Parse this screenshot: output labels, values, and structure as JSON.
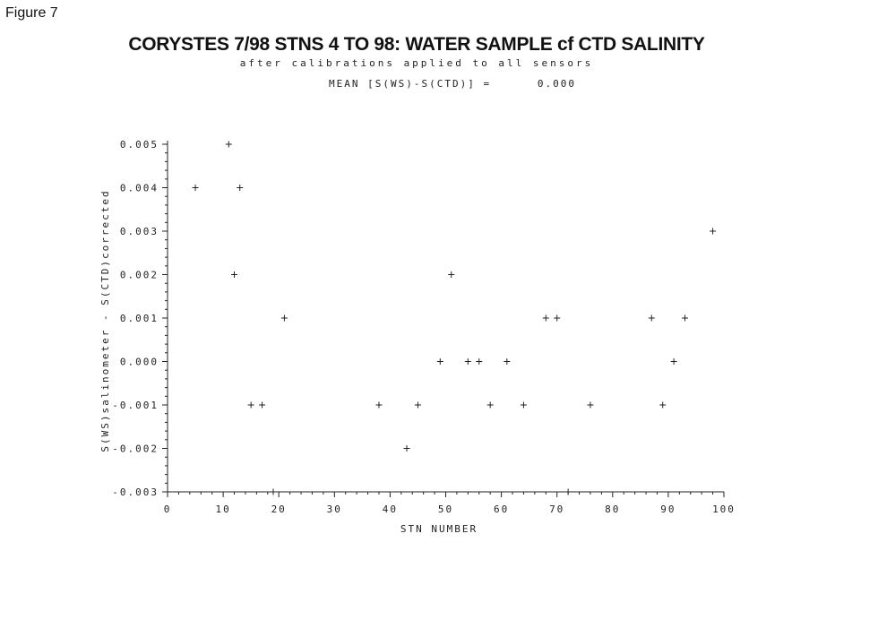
{
  "figure_label": "Figure 7",
  "chart_data": {
    "type": "scatter",
    "title": "CORYSTES 7/98 STNS 4 TO 98: WATER SAMPLE cf CTD SALINITY",
    "subtitle": "after calibrations applied to all sensors",
    "mean_text": "MEAN [S(WS)-S(CTD)] =      0.000",
    "xlabel": "STN NUMBER",
    "ylabel": "S(WS)salinometer - S(CTD)corrected",
    "xlim": [
      0,
      100
    ],
    "ylim": [
      -0.003,
      0.005
    ],
    "x_ticks": [
      0,
      10,
      20,
      30,
      40,
      50,
      60,
      70,
      80,
      90,
      100
    ],
    "x_tick_labels": [
      "0",
      "10",
      "20",
      "30",
      "40",
      "50",
      "60",
      "70",
      "80",
      "90",
      "100"
    ],
    "y_ticks": [
      0.005,
      0.004,
      0.003,
      0.002,
      0.001,
      0.0,
      -0.001,
      -0.002,
      -0.003
    ],
    "y_tick_labels": [
      "0.005",
      "0.004",
      "0.003",
      "0.002",
      "0.001",
      "0.000",
      "-0.001",
      "-0.002",
      "-0.003"
    ],
    "grid": false,
    "marker": "+",
    "points": [
      {
        "x": 5,
        "y": 0.004
      },
      {
        "x": 11,
        "y": 0.005
      },
      {
        "x": 12,
        "y": 0.002
      },
      {
        "x": 13,
        "y": 0.004
      },
      {
        "x": 15,
        "y": -0.001
      },
      {
        "x": 17,
        "y": -0.001
      },
      {
        "x": 19,
        "y": -0.003
      },
      {
        "x": 21,
        "y": 0.001
      },
      {
        "x": 38,
        "y": -0.001
      },
      {
        "x": 43,
        "y": -0.002
      },
      {
        "x": 45,
        "y": -0.001
      },
      {
        "x": 49,
        "y": 0.0
      },
      {
        "x": 51,
        "y": 0.002
      },
      {
        "x": 54,
        "y": 0.0
      },
      {
        "x": 56,
        "y": 0.0
      },
      {
        "x": 58,
        "y": -0.001
      },
      {
        "x": 61,
        "y": 0.0
      },
      {
        "x": 64,
        "y": -0.001
      },
      {
        "x": 68,
        "y": 0.001
      },
      {
        "x": 70,
        "y": 0.001
      },
      {
        "x": 72,
        "y": -0.003
      },
      {
        "x": 76,
        "y": -0.001
      },
      {
        "x": 87,
        "y": 0.001
      },
      {
        "x": 89,
        "y": -0.001
      },
      {
        "x": 91,
        "y": 0.0
      },
      {
        "x": 93,
        "y": 0.001
      },
      {
        "x": 98,
        "y": 0.003
      }
    ]
  }
}
